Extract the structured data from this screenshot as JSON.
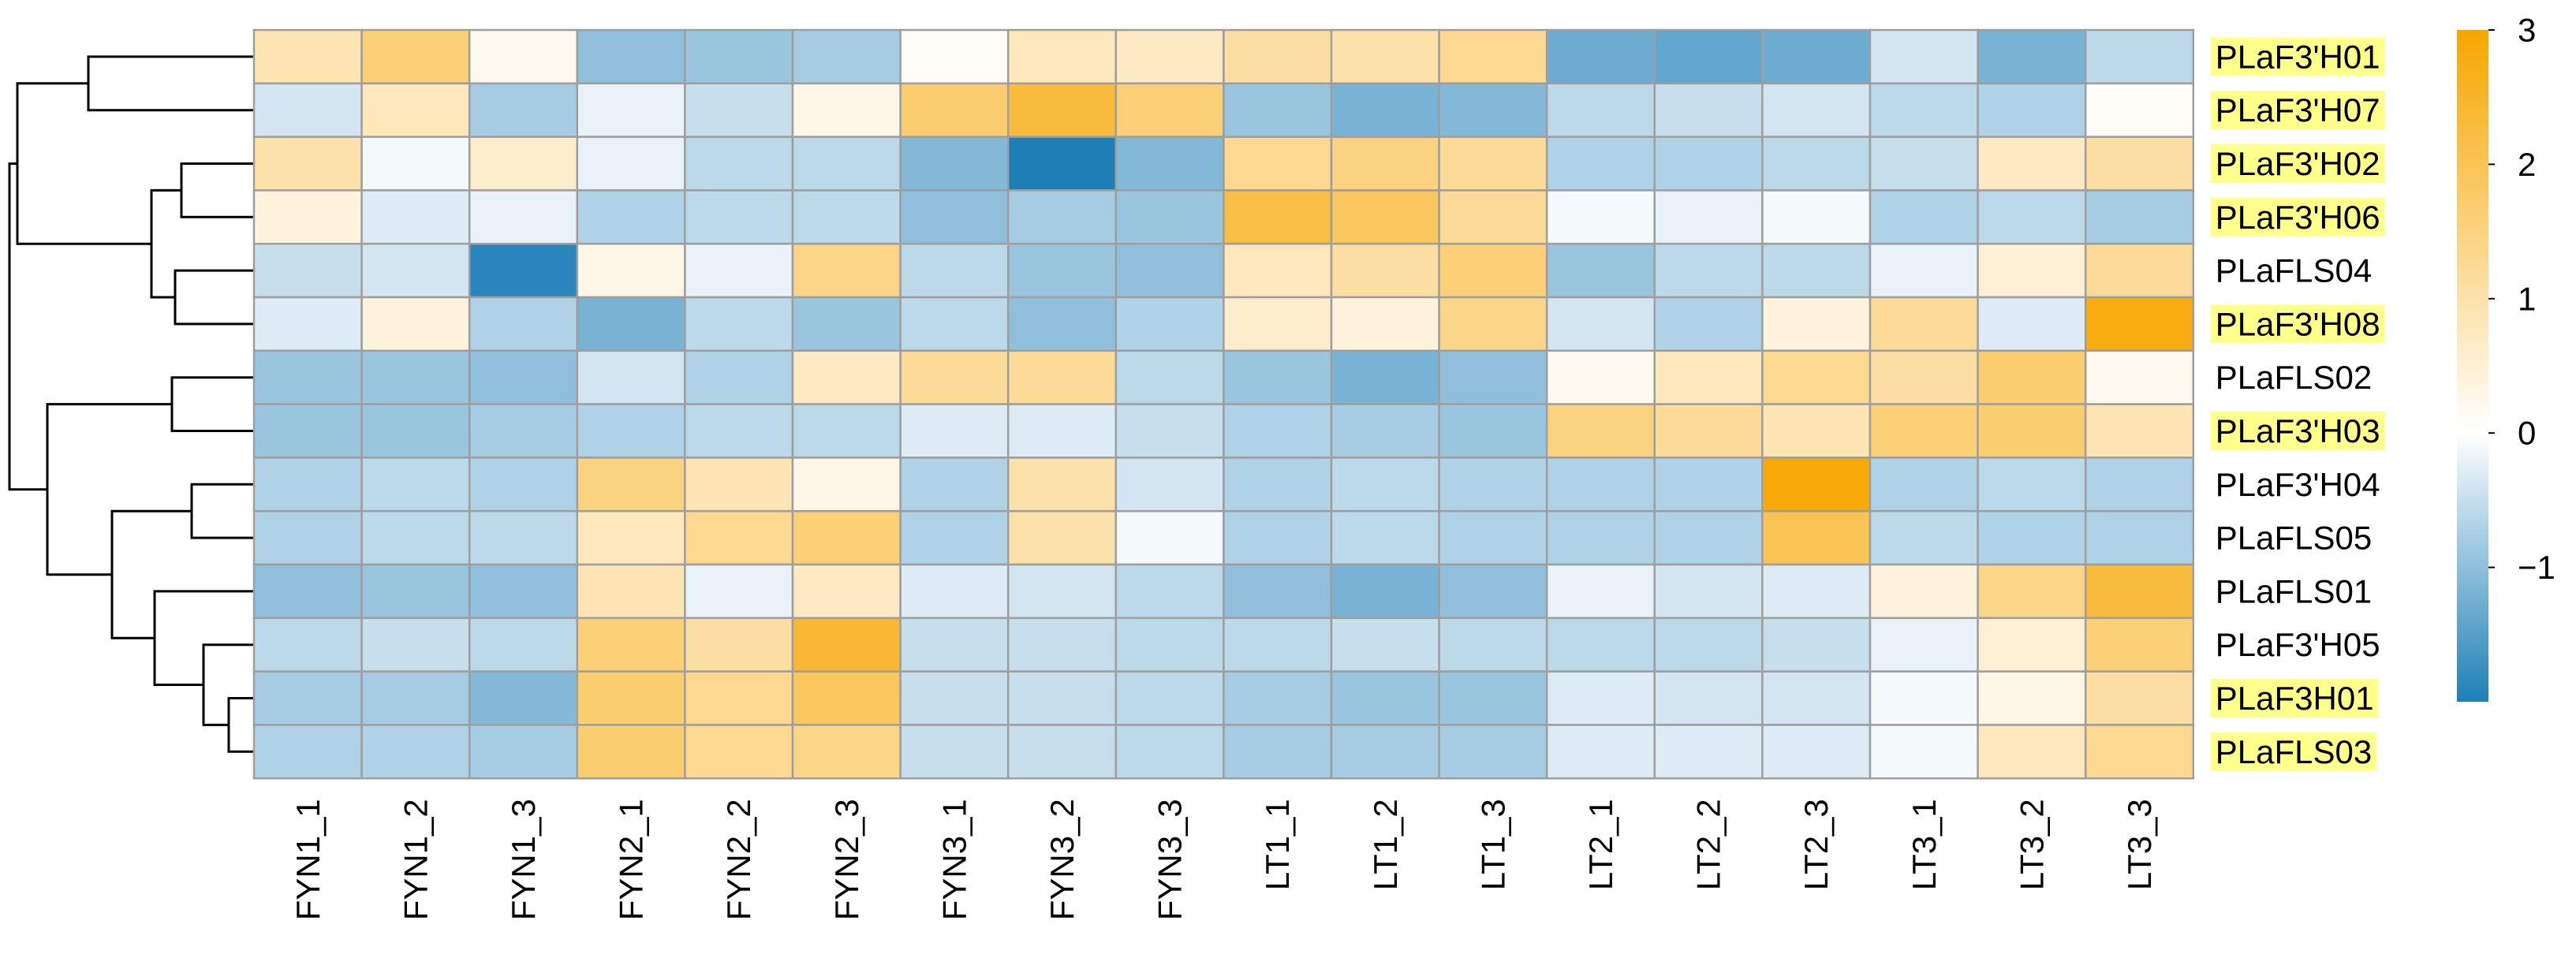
{
  "chart_data": {
    "type": "heatmap",
    "title": "",
    "columns": [
      "FYN1_1",
      "FYN1_2",
      "FYN1_3",
      "FYN2_1",
      "FYN2_2",
      "FYN2_3",
      "FYN3_1",
      "FYN3_2",
      "FYN3_3",
      "LT1_1",
      "LT1_2",
      "LT1_3",
      "LT2_1",
      "LT2_2",
      "LT2_3",
      "LT3_1",
      "LT3_2",
      "LT3_3"
    ],
    "rows": [
      {
        "label": "PLaF3'H01",
        "highlighted": true,
        "values": [
          0.9,
          1.6,
          0.2,
          -1.0,
          -0.9,
          -0.8,
          0.1,
          0.8,
          0.7,
          1.1,
          1.0,
          1.3,
          -1.3,
          -1.4,
          -1.3,
          -0.4,
          -1.2,
          -0.6
        ]
      },
      {
        "label": "PLaF3'H07",
        "highlighted": true,
        "values": [
          -0.4,
          0.8,
          -0.8,
          -0.2,
          -0.5,
          0.3,
          1.7,
          2.3,
          1.6,
          -0.9,
          -1.2,
          -1.1,
          -0.6,
          -0.5,
          -0.4,
          -0.6,
          -0.7,
          0.1
        ]
      },
      {
        "label": "PLaF3'H02",
        "highlighted": true,
        "values": [
          1.0,
          -0.1,
          0.6,
          -0.2,
          -0.6,
          -0.6,
          -1.1,
          -2.0,
          -1.1,
          1.3,
          1.5,
          1.2,
          -0.7,
          -0.7,
          -0.6,
          -0.5,
          0.7,
          1.1
        ]
      },
      {
        "label": "PLaF3'H06",
        "highlighted": true,
        "values": [
          0.4,
          -0.3,
          -0.2,
          -0.7,
          -0.6,
          -0.6,
          -1.0,
          -0.8,
          -0.9,
          2.2,
          1.9,
          1.2,
          -0.1,
          -0.2,
          -0.1,
          -0.7,
          -0.6,
          -0.8
        ]
      },
      {
        "label": "PLaFLS04",
        "highlighted": false,
        "values": [
          -0.5,
          -0.4,
          -1.9,
          0.3,
          -0.2,
          1.4,
          -0.6,
          -0.9,
          -1.0,
          0.8,
          1.1,
          1.6,
          -0.9,
          -0.6,
          -0.6,
          -0.2,
          0.5,
          1.2
        ]
      },
      {
        "label": "PLaF3'H08",
        "highlighted": true,
        "values": [
          -0.3,
          0.4,
          -0.7,
          -1.2,
          -0.6,
          -0.9,
          -0.6,
          -1.0,
          -0.7,
          0.6,
          0.4,
          1.4,
          -0.4,
          -0.7,
          0.4,
          1.2,
          -0.3,
          2.8
        ]
      },
      {
        "label": "PLaFLS02",
        "highlighted": false,
        "values": [
          -0.9,
          -0.9,
          -1.0,
          -0.4,
          -0.7,
          0.7,
          1.2,
          1.2,
          -0.6,
          -0.9,
          -1.2,
          -1.0,
          0.2,
          0.8,
          1.3,
          1.1,
          1.7,
          0.2
        ]
      },
      {
        "label": "PLaF3'H03",
        "highlighted": true,
        "values": [
          -0.9,
          -0.9,
          -0.8,
          -0.7,
          -0.6,
          -0.6,
          -0.3,
          -0.3,
          -0.5,
          -0.7,
          -0.8,
          -0.9,
          1.5,
          1.2,
          0.9,
          1.6,
          1.7,
          0.9
        ]
      },
      {
        "label": "PLaF3'H04",
        "highlighted": false,
        "values": [
          -0.7,
          -0.6,
          -0.7,
          1.5,
          0.9,
          0.3,
          -0.7,
          1.0,
          -0.4,
          -0.7,
          -0.6,
          -0.7,
          -0.7,
          -0.7,
          2.9,
          -0.7,
          -0.6,
          -0.7
        ]
      },
      {
        "label": "PLaFLS05",
        "highlighted": false,
        "values": [
          -0.7,
          -0.6,
          -0.6,
          0.8,
          1.3,
          1.6,
          -0.7,
          1.0,
          -0.1,
          -0.7,
          -0.6,
          -0.7,
          -0.7,
          -0.7,
          2.0,
          -0.6,
          -0.7,
          -0.7
        ]
      },
      {
        "label": "PLaFLS01",
        "highlighted": false,
        "values": [
          -1.0,
          -0.9,
          -1.0,
          0.9,
          -0.2,
          0.7,
          -0.3,
          -0.4,
          -0.6,
          -1.0,
          -1.2,
          -1.0,
          -0.2,
          -0.4,
          -0.3,
          0.4,
          1.4,
          2.3
        ]
      },
      {
        "label": "PLaF3'H05",
        "highlighted": false,
        "values": [
          -0.6,
          -0.5,
          -0.6,
          1.6,
          1.1,
          2.4,
          -0.5,
          -0.5,
          -0.6,
          -0.6,
          -0.5,
          -0.6,
          -0.6,
          -0.6,
          -0.5,
          -0.2,
          0.5,
          1.6
        ]
      },
      {
        "label": "PLaF3H01",
        "highlighted": true,
        "values": [
          -0.8,
          -0.8,
          -1.1,
          1.7,
          1.3,
          1.9,
          -0.5,
          -0.5,
          -0.6,
          -0.8,
          -0.9,
          -0.9,
          -0.3,
          -0.4,
          -0.4,
          -0.1,
          0.3,
          1.1
        ]
      },
      {
        "label": "PLaFLS03",
        "highlighted": true,
        "values": [
          -0.7,
          -0.7,
          -0.8,
          1.7,
          1.3,
          1.4,
          -0.5,
          -0.5,
          -0.6,
          -0.8,
          -0.8,
          -0.8,
          -0.3,
          -0.3,
          -0.3,
          -0.1,
          0.8,
          1.3
        ]
      }
    ],
    "colorscale": {
      "low": "#1e7fb7",
      "mid": "#ffffff",
      "high": "#f7a600",
      "min": -2,
      "max": 3
    },
    "legend": {
      "ticks": [
        3,
        2,
        1,
        0,
        -1
      ],
      "tick_labels": [
        "3",
        "2",
        "1",
        "0",
        "−1"
      ],
      "placement": "right"
    },
    "row_dendrogram": {
      "placement": "left",
      "order": [
        0,
        1,
        2,
        3,
        4,
        5,
        6,
        7,
        8,
        9,
        10,
        11,
        12,
        13
      ]
    },
    "colors": {
      "highlight": "#ffff8c",
      "cell_border": "#9e9e9e"
    }
  }
}
